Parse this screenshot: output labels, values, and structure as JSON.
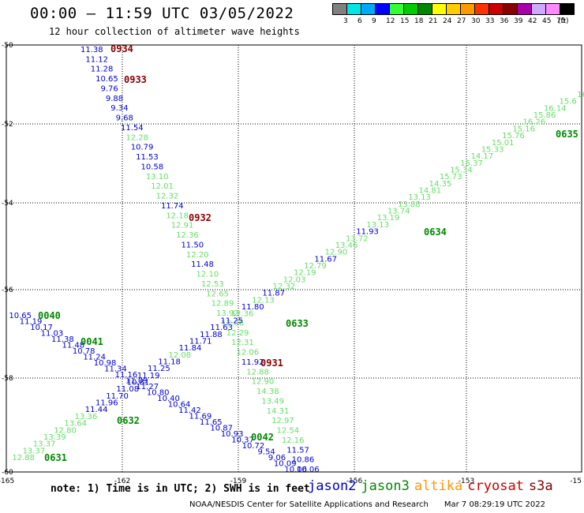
{
  "header": {
    "title": "00:00 – 11:59 UTC 03/05/2022",
    "subtitle": "12 hour collection of altimeter wave heights"
  },
  "colorbar": {
    "labels": [
      "3",
      "6",
      "9",
      "12",
      "15",
      "18",
      "21",
      "24",
      "27",
      "30",
      "33",
      "36",
      "39",
      "42",
      "45",
      "70"
    ],
    "unit": "(ft)",
    "colors": [
      "#808080",
      "#00e5e5",
      "#00aaff",
      "#0000ff",
      "#33ff33",
      "#00cc00",
      "#008800",
      "#ffff00",
      "#ffcc00",
      "#ff9900",
      "#ff3300",
      "#cc0000",
      "#880000",
      "#aa00aa",
      "#ccaaff",
      "#ff88ff",
      "#000000"
    ]
  },
  "map": {
    "x_ticks": [
      "-165",
      "-162",
      "-159",
      "-156",
      "-153",
      "-15"
    ],
    "y_ticks": [
      "-50",
      "-52",
      "-54",
      "-56",
      "-58",
      "-60"
    ]
  },
  "tracks": {
    "t0934": [
      {
        "t": "11.38",
        "c": "#0000cc"
      },
      {
        "t": "11.12",
        "c": "#0000cc"
      },
      {
        "t": "11.28",
        "c": "#0000cc"
      },
      {
        "t": "10.65",
        "c": "#0000cc"
      },
      {
        "t": "9.76",
        "c": "#0000cc"
      },
      {
        "t": "9.88",
        "c": "#0000cc"
      },
      {
        "t": "9.34",
        "c": "#0000cc"
      },
      {
        "t": "9.68",
        "c": "#0000cc"
      },
      {
        "t": "11.54",
        "c": "#0000cc"
      },
      {
        "t": "12.28",
        "c": "#66dd66"
      },
      {
        "t": "10.79",
        "c": "#0000cc"
      },
      {
        "t": "11.53",
        "c": "#0000cc"
      },
      {
        "t": "10.58",
        "c": "#0000cc"
      },
      {
        "t": "13.10",
        "c": "#66dd66"
      },
      {
        "t": "12.01",
        "c": "#66dd66"
      },
      {
        "t": "12.32",
        "c": "#66dd66"
      },
      {
        "t": "11.74",
        "c": "#0000cc"
      },
      {
        "t": "12.18",
        "c": "#66dd66"
      },
      {
        "t": "12.91",
        "c": "#66dd66"
      },
      {
        "t": "12.36",
        "c": "#66dd66"
      },
      {
        "t": "11.50",
        "c": "#0000cc"
      },
      {
        "t": "12.20",
        "c": "#66dd66"
      },
      {
        "t": "11.48",
        "c": "#0000cc"
      },
      {
        "t": "12.10",
        "c": "#66dd66"
      },
      {
        "t": "12.53",
        "c": "#66dd66"
      },
      {
        "t": "12.65",
        "c": "#66dd66"
      },
      {
        "t": "12.89",
        "c": "#66dd66"
      },
      {
        "t": "13.92",
        "c": "#66dd66"
      },
      {
        "t": "12.06",
        "c": "#66dd66"
      },
      {
        "t": "12.29",
        "c": "#66dd66"
      },
      {
        "t": "12.31",
        "c": "#66dd66"
      },
      {
        "t": "12.06",
        "c": "#66dd66"
      },
      {
        "t": "11.92",
        "c": "#0000cc"
      },
      {
        "t": "12.88",
        "c": "#66dd66"
      },
      {
        "t": "12.90",
        "c": "#66dd66"
      },
      {
        "t": "14.38",
        "c": "#66dd66"
      },
      {
        "t": "13.49",
        "c": "#66dd66"
      },
      {
        "t": "14.31",
        "c": "#66dd66"
      },
      {
        "t": "12.97",
        "c": "#66dd66"
      },
      {
        "t": "12.54",
        "c": "#66dd66"
      },
      {
        "t": "12.16",
        "c": "#66dd66"
      },
      {
        "t": "11.57",
        "c": "#0000cc"
      },
      {
        "t": "10.86",
        "c": "#0000cc"
      },
      {
        "t": "10.06",
        "c": "#0000cc"
      }
    ],
    "t0040": [
      {
        "t": "10.65",
        "c": "#0000cc"
      },
      {
        "t": "11.19",
        "c": "#0000cc"
      },
      {
        "t": "10.17",
        "c": "#0000cc"
      },
      {
        "t": "11.03",
        "c": "#0000cc"
      },
      {
        "t": "11.38",
        "c": "#0000cc"
      },
      {
        "t": "11.48",
        "c": "#0000cc"
      },
      {
        "t": "10.78",
        "c": "#0000cc"
      },
      {
        "t": "11.24",
        "c": "#0000cc"
      },
      {
        "t": "10.98",
        "c": "#0000cc"
      },
      {
        "t": "11.34",
        "c": "#0000cc"
      },
      {
        "t": "11.16",
        "c": "#0000cc"
      },
      {
        "t": "11.09",
        "c": "#0000cc"
      },
      {
        "t": "11.27",
        "c": "#0000cc"
      },
      {
        "t": "10.80",
        "c": "#0000cc"
      },
      {
        "t": "10.40",
        "c": "#0000cc"
      },
      {
        "t": "10.64",
        "c": "#0000cc"
      },
      {
        "t": "11.42",
        "c": "#0000cc"
      },
      {
        "t": "11.69",
        "c": "#0000cc"
      },
      {
        "t": "11.65",
        "c": "#0000cc"
      },
      {
        "t": "10.87",
        "c": "#0000cc"
      },
      {
        "t": "10.93",
        "c": "#0000cc"
      },
      {
        "t": "10.37",
        "c": "#0000cc"
      },
      {
        "t": "10.72",
        "c": "#0000cc"
      },
      {
        "t": "9.54",
        "c": "#0000cc"
      },
      {
        "t": "9.06",
        "c": "#0000cc"
      },
      {
        "t": "10.09",
        "c": "#0000cc"
      },
      {
        "t": "10.06",
        "c": "#0000cc"
      }
    ],
    "t0632": [
      {
        "t": "12.88",
        "c": "#66dd66"
      },
      {
        "t": "13.37",
        "c": "#66dd66"
      },
      {
        "t": "13.37",
        "c": "#66dd66"
      },
      {
        "t": "13.39",
        "c": "#66dd66"
      },
      {
        "t": "12.80",
        "c": "#66dd66"
      },
      {
        "t": "13.64",
        "c": "#66dd66"
      },
      {
        "t": "13.36",
        "c": "#66dd66"
      },
      {
        "t": "11.44",
        "c": "#0000cc"
      },
      {
        "t": "11.96",
        "c": "#0000cc"
      },
      {
        "t": "11.70",
        "c": "#0000cc"
      },
      {
        "t": "11.08",
        "c": "#0000cc"
      },
      {
        "t": "10.81",
        "c": "#0000cc"
      },
      {
        "t": "11.19",
        "c": "#0000cc"
      },
      {
        "t": "11.25",
        "c": "#0000cc"
      },
      {
        "t": "11.18",
        "c": "#0000cc"
      },
      {
        "t": "12.08",
        "c": "#66dd66"
      },
      {
        "t": "11.84",
        "c": "#0000cc"
      },
      {
        "t": "11.71",
        "c": "#0000cc"
      },
      {
        "t": "11.88",
        "c": "#0000cc"
      },
      {
        "t": "11.63",
        "c": "#0000cc"
      },
      {
        "t": "11.25",
        "c": "#0000cc"
      },
      {
        "t": "12.36",
        "c": "#66dd66"
      },
      {
        "t": "11.80",
        "c": "#0000cc"
      },
      {
        "t": "12.13",
        "c": "#66dd66"
      },
      {
        "t": "11.87",
        "c": "#0000cc"
      },
      {
        "t": "12.32",
        "c": "#66dd66"
      },
      {
        "t": "12.03",
        "c": "#66dd66"
      },
      {
        "t": "12.19",
        "c": "#66dd66"
      },
      {
        "t": "12.79",
        "c": "#66dd66"
      },
      {
        "t": "11.67",
        "c": "#0000cc"
      },
      {
        "t": "12.90",
        "c": "#66dd66"
      },
      {
        "t": "13.46",
        "c": "#66dd66"
      },
      {
        "t": "13.72",
        "c": "#66dd66"
      },
      {
        "t": "11.93",
        "c": "#0000cc"
      },
      {
        "t": "13.13",
        "c": "#66dd66"
      },
      {
        "t": "13.19",
        "c": "#66dd66"
      },
      {
        "t": "13.74",
        "c": "#66dd66"
      },
      {
        "t": "13.88",
        "c": "#66dd66"
      },
      {
        "t": "13.13",
        "c": "#66dd66"
      },
      {
        "t": "14.81",
        "c": "#66dd66"
      },
      {
        "t": "14.35",
        "c": "#66dd66"
      },
      {
        "t": "15.73",
        "c": "#66dd66"
      },
      {
        "t": "15.34",
        "c": "#66dd66"
      },
      {
        "t": "15.37",
        "c": "#66dd66"
      },
      {
        "t": "14.17",
        "c": "#66dd66"
      },
      {
        "t": "15.33",
        "c": "#66dd66"
      },
      {
        "t": "15.01",
        "c": "#66dd66"
      },
      {
        "t": "15.76",
        "c": "#66dd66"
      },
      {
        "t": "15.16",
        "c": "#66dd66"
      },
      {
        "t": "16.26",
        "c": "#66dd66"
      },
      {
        "t": "15.86",
        "c": "#66dd66"
      },
      {
        "t": "16.14",
        "c": "#66dd66"
      },
      {
        "t": "15.6",
        "c": "#66dd66"
      },
      {
        "t": "16",
        "c": "#66dd66"
      }
    ]
  },
  "time_labels": [
    {
      "t": "0934",
      "c": "#880000"
    },
    {
      "t": "0933",
      "c": "#880000"
    },
    {
      "t": "0932",
      "c": "#880000"
    },
    {
      "t": "0931",
      "c": "#880000"
    },
    {
      "t": "0040",
      "c": "#008800"
    },
    {
      "t": "0041",
      "c": "#008800"
    },
    {
      "t": "0042",
      "c": "#008800"
    },
    {
      "t": "0631",
      "c": "#008800"
    },
    {
      "t": "0632",
      "c": "#008800"
    },
    {
      "t": "0633",
      "c": "#008800"
    },
    {
      "t": "0634",
      "c": "#008800"
    },
    {
      "t": "0635",
      "c": "#008800"
    }
  ],
  "footer": {
    "note": "note: 1) Time is in UTC; 2) SWH is in feet",
    "legend": [
      {
        "name": "jason2",
        "color": "#0000cc"
      },
      {
        "name": "jason3",
        "color": "#008800"
      },
      {
        "name": "altika",
        "color": "#ff9900"
      },
      {
        "name": "cryosat",
        "color": "#cc0000"
      },
      {
        "name": "s3a",
        "color": "#880000"
      }
    ],
    "credit": "NOAA/NESDIS Center for Satellite Applications and Research",
    "timestamp": "Mar  7 08:29:19 UTC 2022"
  }
}
